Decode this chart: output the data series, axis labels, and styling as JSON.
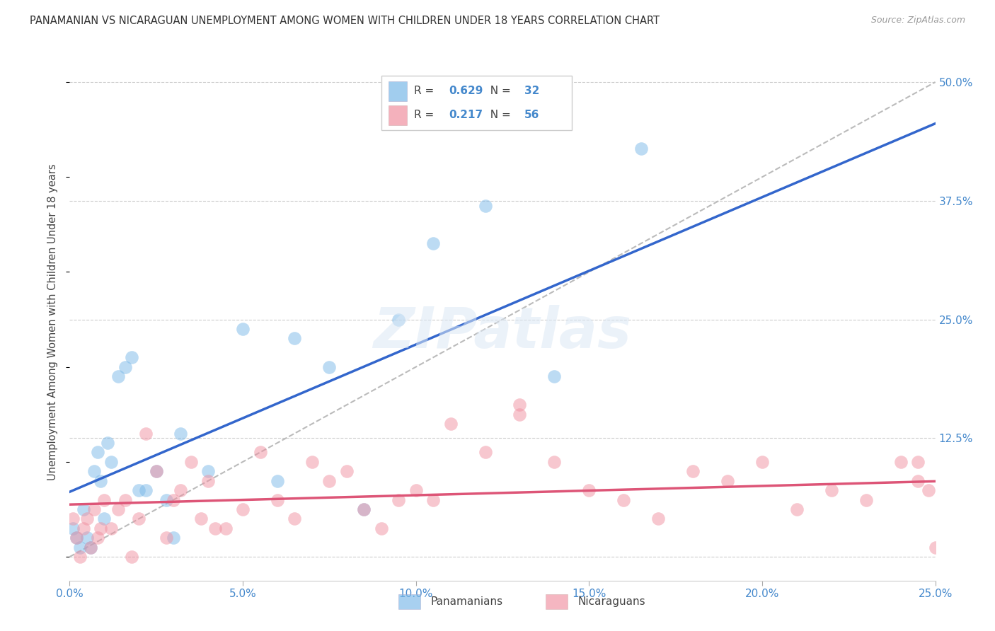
{
  "title": "PANAMANIAN VS NICARAGUAN UNEMPLOYMENT AMONG WOMEN WITH CHILDREN UNDER 18 YEARS CORRELATION CHART",
  "source": "Source: ZipAtlas.com",
  "ylabel": "Unemployment Among Women with Children Under 18 years",
  "xlim": [
    0.0,
    0.25
  ],
  "ylim": [
    -0.025,
    0.52
  ],
  "yticks": [
    0.0,
    0.125,
    0.25,
    0.375,
    0.5
  ],
  "ytick_labels": [
    "",
    "12.5%",
    "25.0%",
    "37.5%",
    "50.0%"
  ],
  "xticks": [
    0.0,
    0.05,
    0.1,
    0.15,
    0.2,
    0.25
  ],
  "xtick_labels": [
    "0.0%",
    "5.0%",
    "10.0%",
    "15.0%",
    "20.0%",
    "25.0%"
  ],
  "panamanian_color": "#7ab8e8",
  "nicaraguan_color": "#f090a0",
  "panamanian_line_color": "#3366cc",
  "nicaraguan_line_color": "#dd5577",
  "diagonal_line_color": "#bbbbbb",
  "watermark": "ZIPatlas",
  "pan_r": 0.629,
  "pan_n": 32,
  "nic_r": 0.217,
  "nic_n": 56,
  "pan_x": [
    0.001,
    0.002,
    0.003,
    0.004,
    0.005,
    0.006,
    0.007,
    0.008,
    0.009,
    0.01,
    0.011,
    0.012,
    0.014,
    0.016,
    0.018,
    0.02,
    0.022,
    0.025,
    0.028,
    0.03,
    0.032,
    0.04,
    0.05,
    0.06,
    0.065,
    0.075,
    0.085,
    0.095,
    0.105,
    0.12,
    0.14,
    0.165
  ],
  "pan_y": [
    0.03,
    0.02,
    0.01,
    0.05,
    0.02,
    0.01,
    0.09,
    0.11,
    0.08,
    0.04,
    0.12,
    0.1,
    0.19,
    0.2,
    0.21,
    0.07,
    0.07,
    0.09,
    0.06,
    0.02,
    0.13,
    0.09,
    0.24,
    0.08,
    0.23,
    0.2,
    0.05,
    0.25,
    0.33,
    0.37,
    0.19,
    0.43
  ],
  "nic_x": [
    0.001,
    0.002,
    0.003,
    0.004,
    0.005,
    0.006,
    0.007,
    0.008,
    0.009,
    0.01,
    0.012,
    0.014,
    0.016,
    0.018,
    0.02,
    0.022,
    0.025,
    0.028,
    0.03,
    0.032,
    0.035,
    0.038,
    0.04,
    0.042,
    0.045,
    0.05,
    0.055,
    0.06,
    0.065,
    0.07,
    0.075,
    0.08,
    0.085,
    0.09,
    0.095,
    0.1,
    0.105,
    0.11,
    0.12,
    0.13,
    0.14,
    0.15,
    0.16,
    0.17,
    0.18,
    0.19,
    0.2,
    0.21,
    0.22,
    0.23,
    0.24,
    0.245,
    0.248,
    0.25,
    0.13,
    0.245
  ],
  "nic_y": [
    0.04,
    0.02,
    0.0,
    0.03,
    0.04,
    0.01,
    0.05,
    0.02,
    0.03,
    0.06,
    0.03,
    0.05,
    0.06,
    0.0,
    0.04,
    0.13,
    0.09,
    0.02,
    0.06,
    0.07,
    0.1,
    0.04,
    0.08,
    0.03,
    0.03,
    0.05,
    0.11,
    0.06,
    0.04,
    0.1,
    0.08,
    0.09,
    0.05,
    0.03,
    0.06,
    0.07,
    0.06,
    0.14,
    0.11,
    0.16,
    0.1,
    0.07,
    0.06,
    0.04,
    0.09,
    0.08,
    0.1,
    0.05,
    0.07,
    0.06,
    0.1,
    0.08,
    0.07,
    0.01,
    0.15,
    0.1
  ]
}
